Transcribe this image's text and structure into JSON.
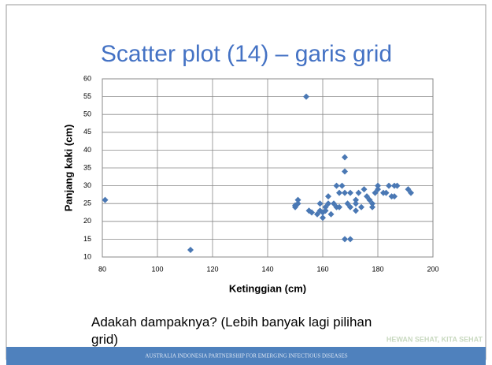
{
  "slide": {
    "title": "Scatter plot (14) – garis grid",
    "caption": "Adakah dampaknya? (Lebih banyak lagi pilihan grid)",
    "footer": "AUSTRALIA INDONESIA PARTNERSHIP FOR EMERGING INFECTIOUS DISEASES",
    "watermark": "HEWAN SEHAT, KITA SEHAT"
  },
  "chart_data": {
    "type": "scatter",
    "x_label": "Ketinggian (cm)",
    "y_label": "Panjang kaki (cm)",
    "color": "#4a78b4",
    "grid": true,
    "xlim": [
      80,
      200
    ],
    "xticks": [
      80,
      100,
      120,
      140,
      160,
      180,
      200
    ],
    "ylim": [
      10,
      60
    ],
    "yticks": [
      10,
      15,
      20,
      25,
      30,
      35,
      40,
      45,
      50,
      55,
      60
    ],
    "x": [
      81,
      112,
      154,
      150,
      151,
      151,
      150,
      155,
      156,
      158,
      159,
      159,
      160,
      160,
      161,
      161,
      162,
      162,
      163,
      164,
      165,
      165,
      166,
      168,
      168,
      168,
      170,
      168,
      169,
      170,
      170,
      172,
      172,
      172,
      173,
      174,
      175,
      176,
      177,
      178,
      178,
      179,
      180,
      180,
      182,
      183,
      184,
      185,
      186,
      186,
      187,
      191,
      192,
      167,
      166
    ],
    "values": [
      26,
      12,
      55,
      24,
      25,
      26,
      24.5,
      23,
      22.5,
      22,
      23,
      25,
      21,
      22.5,
      24,
      23,
      25,
      27,
      22,
      25,
      24,
      30,
      24,
      38,
      34,
      15,
      15,
      28,
      25,
      24,
      28,
      23,
      25,
      26,
      28,
      24,
      29,
      27,
      26,
      25,
      24,
      28,
      29,
      30,
      28,
      28,
      30,
      27,
      27,
      30,
      30,
      29,
      28,
      30,
      28
    ]
  }
}
